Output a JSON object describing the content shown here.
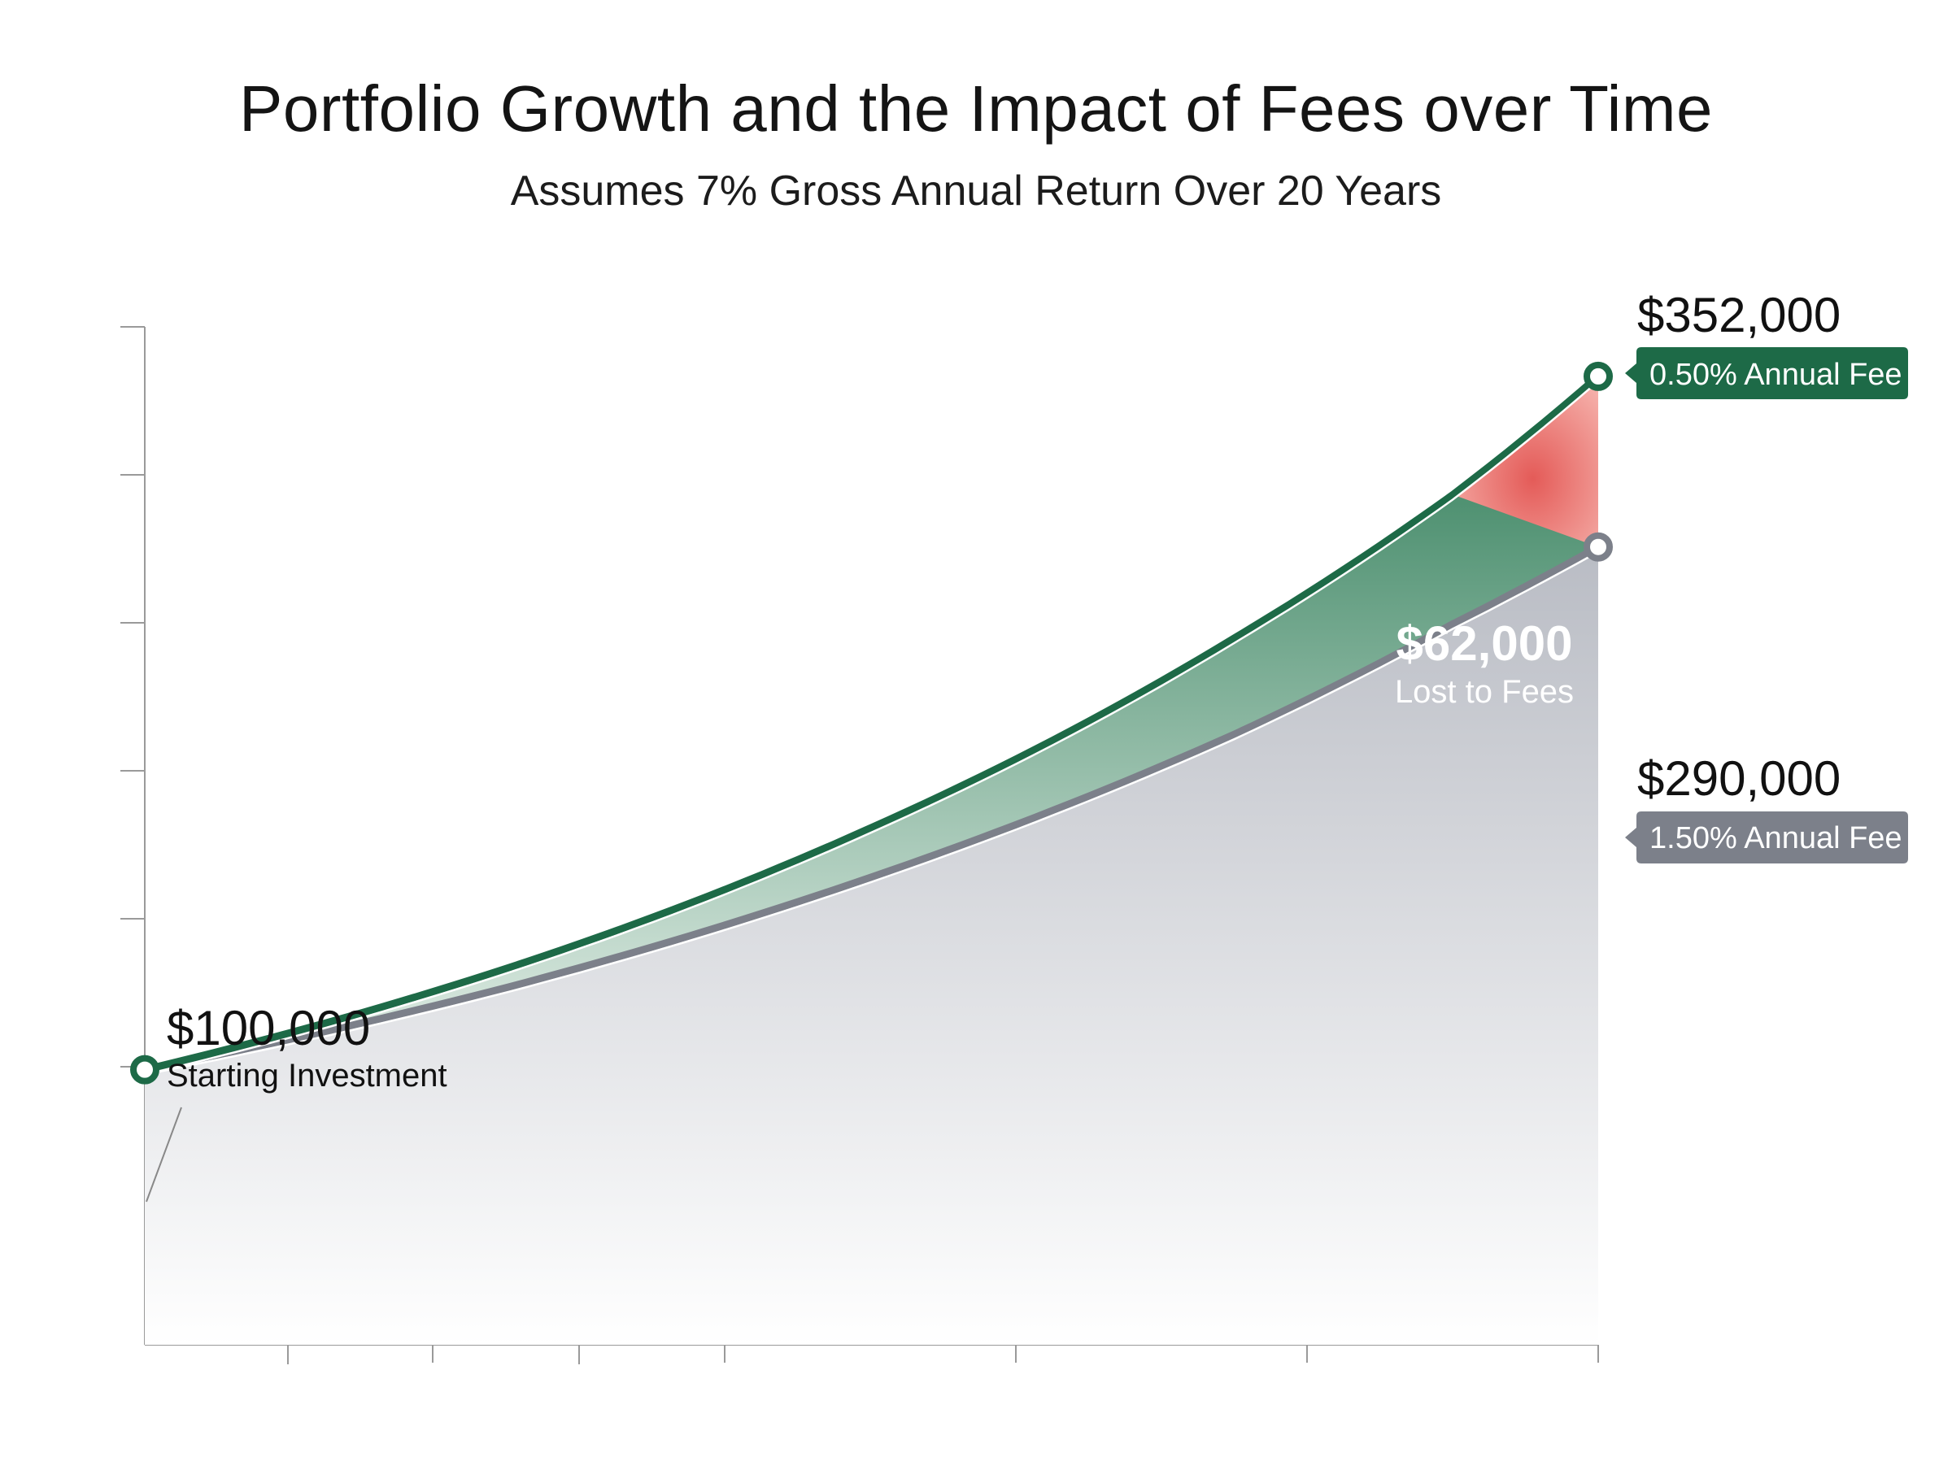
{
  "chart_data": {
    "type": "area",
    "title": "Portfolio Growth and the Impact of Fees over Time",
    "subtitle": "Assumes 7% Gross Annual Return Over 20 Years",
    "xlabel": "",
    "ylabel": "",
    "x_range": [
      0,
      20
    ],
    "ylim": [
      0,
      370000
    ],
    "grid": false,
    "series": [
      {
        "name": "0.50% Annual Fee",
        "color": "#1d6a47",
        "start_value": 100000,
        "end_value": 352000,
        "x": [
          0,
          5,
          10,
          15,
          18,
          20
        ],
        "values": [
          100000,
          137000,
          188000,
          257000,
          309000,
          352000
        ]
      },
      {
        "name": "1.50% Annual Fee",
        "color": "#7c808a",
        "start_value": 100000,
        "end_value": 290000,
        "x": [
          0,
          5,
          10,
          15,
          18,
          20
        ],
        "values": [
          100000,
          130000,
          170000,
          222000,
          262000,
          290000
        ]
      }
    ],
    "annotations": {
      "start": {
        "value": "$100,000",
        "label": "Starting Investment"
      },
      "top_end": {
        "value": "$352,000",
        "tag": "0.50% Annual Fee"
      },
      "bottom_end": {
        "value": "$290,000",
        "tag": "1.50% Annual Fee"
      },
      "difference": {
        "value": "$62,000",
        "label": "Lost to Fees"
      }
    },
    "colors": {
      "low_fee_line": "#1d6a47",
      "high_fee_line": "#7c808a",
      "low_fee_fill": "#3f8a66",
      "loss_fill": "#e8706c",
      "high_fee_fill": "#c0c3ca",
      "axis": "#9a9a9a"
    }
  }
}
